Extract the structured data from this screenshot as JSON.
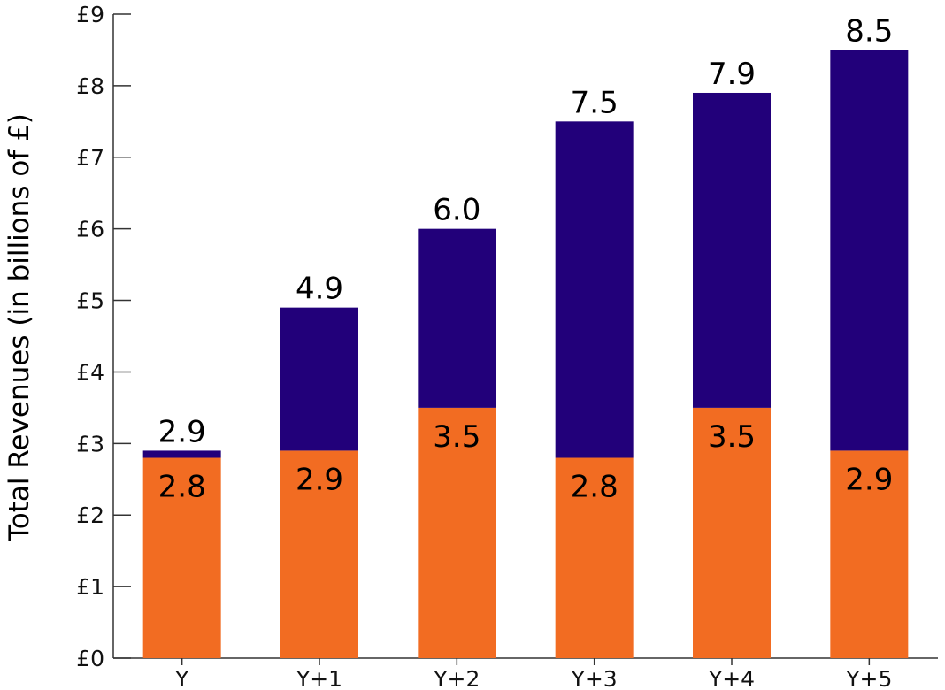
{
  "chart_data": {
    "type": "bar",
    "stacked": true,
    "categories": [
      "Y",
      "Y+1",
      "Y+2",
      "Y+3",
      "Y+4",
      "Y+5"
    ],
    "series": [
      {
        "values": [
          2.8,
          2.9,
          3.5,
          2.8,
          3.5,
          2.9
        ],
        "color": "#f26c22"
      },
      {
        "values": [
          0.1,
          2.0,
          2.5,
          4.7,
          4.4,
          5.6
        ],
        "color": "#22007a"
      }
    ],
    "bottom_labels": [
      "2.8",
      "2.9",
      "3.5",
      "2.8",
      "3.5",
      "2.9"
    ],
    "total_labels": [
      "2.9",
      "4.9",
      "6.0",
      "7.5",
      "7.9",
      "8.5"
    ],
    "yticks": [
      "£0",
      "£1",
      "£2",
      "£3",
      "£4",
      "£5",
      "£6",
      "£7",
      "£8",
      "£9"
    ],
    "ylabel": "Total Revenues (in billions of £)",
    "xlabel": "",
    "title": "",
    "ylim": [
      0,
      9
    ],
    "grid": false,
    "legend": "none"
  }
}
